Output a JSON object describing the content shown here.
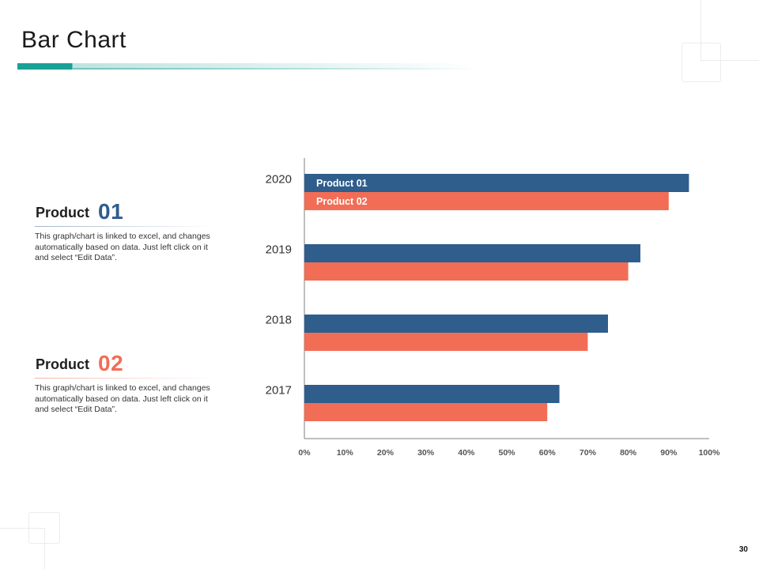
{
  "page": {
    "title": "Bar Chart",
    "page_number": "30"
  },
  "products": [
    {
      "label": "Product",
      "number": "01",
      "description": "This graph/chart is linked to excel, and changes automatically based on data. Just left click on it and select “Edit Data”."
    },
    {
      "label": "Product",
      "number": "02",
      "description": "This graph/chart is linked to excel, and changes automatically based on data. Just left click on it and select “Edit Data”."
    }
  ],
  "colors": {
    "accent": "#1aa198",
    "product_01": "#2f5d8c",
    "product_02": "#f26d55"
  },
  "chart_data": {
    "type": "bar",
    "orientation": "horizontal",
    "title": "",
    "xlabel": "",
    "ylabel": "",
    "categories": [
      "2020",
      "2019",
      "2018",
      "2017"
    ],
    "series": [
      {
        "name": "Product 01",
        "color": "#2f5d8c",
        "values": [
          95,
          83,
          75,
          63
        ]
      },
      {
        "name": "Product 02",
        "color": "#f26d55",
        "values": [
          90,
          80,
          70,
          60
        ]
      }
    ],
    "xlim": [
      0,
      100
    ],
    "xticks": [
      0,
      10,
      20,
      30,
      40,
      50,
      60,
      70,
      80,
      90,
      100
    ],
    "tick_suffix": "%",
    "legend": "inside-top-left"
  }
}
